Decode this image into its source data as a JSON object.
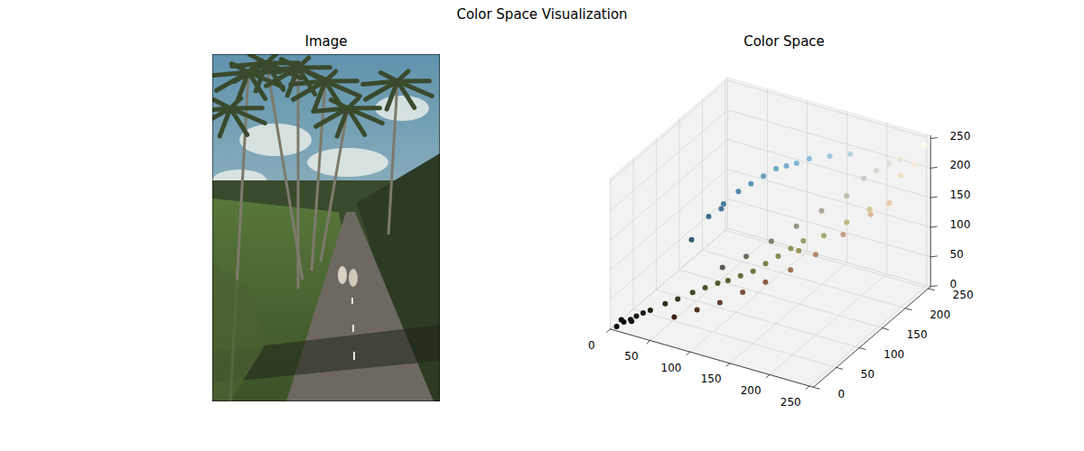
{
  "title": "Color Space Visualization",
  "chart_data": [
    {
      "type": "image",
      "title": "Image",
      "tick_labels": false
    },
    {
      "type": "scatter3d",
      "title": "Color Space",
      "x": [
        5,
        10,
        15,
        20,
        25,
        30,
        8,
        18,
        40,
        50,
        60,
        70,
        80,
        90,
        100,
        110,
        120,
        130,
        140,
        150,
        90,
        110,
        130,
        150,
        170,
        190,
        200,
        210,
        220,
        230,
        240,
        250,
        255,
        245,
        235,
        60,
        70,
        80,
        90,
        100,
        110,
        120,
        130,
        140,
        160,
        180,
        50,
        70,
        60,
        80,
        100,
        120,
        140,
        160,
        180,
        200,
        220,
        235,
        150,
        170,
        190,
        210
      ],
      "y": [
        5,
        12,
        18,
        22,
        28,
        35,
        10,
        15,
        50,
        60,
        75,
        85,
        95,
        100,
        110,
        120,
        130,
        140,
        150,
        160,
        88,
        105,
        125,
        145,
        165,
        185,
        205,
        215,
        225,
        232,
        240,
        250,
        255,
        235,
        225,
        110,
        125,
        140,
        150,
        160,
        170,
        175,
        180,
        190,
        200,
        210,
        90,
        120,
        35,
        50,
        65,
        80,
        95,
        115,
        135,
        160,
        185,
        200,
        150,
        170,
        185,
        200
      ],
      "z": [
        3,
        8,
        10,
        15,
        18,
        20,
        12,
        10,
        25,
        30,
        35,
        40,
        45,
        50,
        55,
        60,
        70,
        80,
        90,
        100,
        80,
        95,
        115,
        135,
        155,
        175,
        195,
        205,
        215,
        220,
        230,
        240,
        250,
        215,
        200,
        140,
        155,
        170,
        180,
        190,
        200,
        205,
        210,
        215,
        220,
        225,
        110,
        150,
        20,
        30,
        40,
        55,
        70,
        85,
        105,
        130,
        155,
        170,
        90,
        110,
        130,
        150
      ],
      "xlim": [
        0,
        255
      ],
      "ylim": [
        0,
        255
      ],
      "zlim": [
        0,
        255
      ],
      "xticks": [
        0,
        50,
        100,
        150,
        200,
        250
      ],
      "yticks": [
        0,
        50,
        100,
        150,
        200,
        250
      ],
      "zticks": [
        0,
        50,
        100,
        150,
        200,
        250
      ],
      "grid": true
    }
  ]
}
